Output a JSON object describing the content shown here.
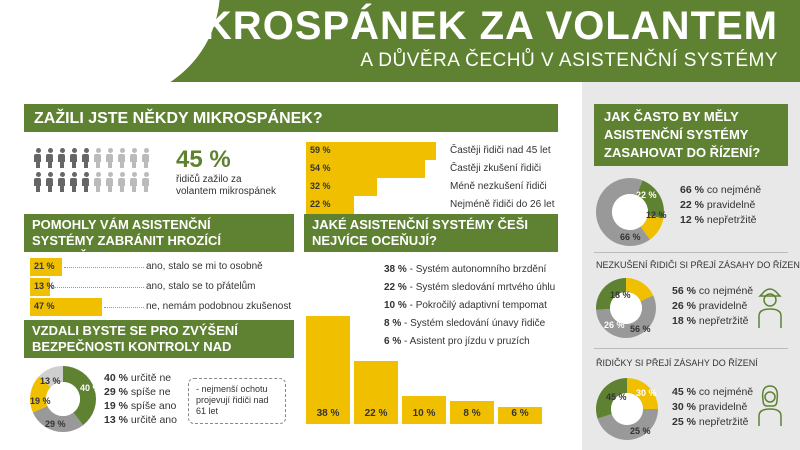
{
  "header": {
    "title": "MIKROSPÁNEK ZA VOLANTEM",
    "subtitle": "A DŮVĚRA ČECHŮ V ASISTENČNÍ SYSTÉMY"
  },
  "microsleep": {
    "title": "ZAŽILI JSTE NĚKDY MIKROSPÁNEK?",
    "big_value": "45 %",
    "big_caption_1": "řidičů zažilo za",
    "big_caption_2": "volantem mikrospánek",
    "people_total": 20,
    "people_highlighted": 9,
    "bars": [
      {
        "pct": "59 %",
        "value": 59,
        "label": "Častěji řidiči nad 45 let"
      },
      {
        "pct": "54 %",
        "value": 54,
        "label": "Častěji zkušení řidiči"
      },
      {
        "pct": "32 %",
        "value": 32,
        "label": "Méně nezkušení řidiči"
      },
      {
        "pct": "22 %",
        "value": 22,
        "label": "Nejméně řidiči do 26 let"
      }
    ]
  },
  "helped": {
    "title_1": "POMOHLY VÁM ASISTENČNÍ",
    "title_2": "SYSTÉMY ZABRÁNIT HROZÍCÍ NEHODĚ?",
    "bars": [
      {
        "pct": "21 %",
        "value": 21,
        "label": "ano, stalo se mi to osobně"
      },
      {
        "pct": "13 %",
        "value": 13,
        "label": "ano, stalo se to přátelům"
      },
      {
        "pct": "47 %",
        "value": 47,
        "label": "ne, nemám podobnou zkušenost"
      }
    ]
  },
  "valued": {
    "title_1": "JAKÉ ASISTENČNÍ SYSTÉMY ČEŠI",
    "title_2": "NEJVÍCE OCEŇUJÍ?",
    "items": [
      {
        "pct": "38 %",
        "value": 38,
        "label": "Systém autonomního brzdění"
      },
      {
        "pct": "22 %",
        "value": 22,
        "label": "Systém sledování mrtvého úhlu"
      },
      {
        "pct": "10 %",
        "value": 10,
        "label": "Pokročilý adaptivní tempomat"
      },
      {
        "pct": "8 %",
        "value": 8,
        "label": "Systém sledování únavy řidiče"
      },
      {
        "pct": "6 %",
        "value": 6,
        "label": "Asistent pro jízdu v pruzích"
      }
    ]
  },
  "control": {
    "title_1": "VZDALI BYSTE SE PRO ZVÝŠENÍ",
    "title_2": "BEZPEČNOSTI KONTROLY NAD VOZEM?",
    "slices": [
      {
        "pct": "40 %",
        "value": 40,
        "label": "určitě ne",
        "color": "#5f8232"
      },
      {
        "pct": "29 %",
        "value": 29,
        "label": "spíše ne",
        "color": "#999999"
      },
      {
        "pct": "19 %",
        "value": 19,
        "label": "spíše ano",
        "color": "#f0c000"
      },
      {
        "pct": "13 %",
        "value": 13,
        "label": "určitě ano",
        "color": "#cfcfcf"
      }
    ],
    "note_1": "- nejmenší ochotu",
    "note_2": "projevují řidiči nad",
    "note_3": "61 let"
  },
  "intervene": {
    "title_1": "JAK ČASTO BY MĚLY",
    "title_2": "ASISTENČNÍ SYSTÉMY",
    "title_3": "ZASAHOVAT DO ŘÍZENÍ?",
    "slices": [
      {
        "pct": "66 %",
        "value": 66,
        "label": "co nejméně",
        "color": "#999999"
      },
      {
        "pct": "22 %",
        "value": 22,
        "label": "pravidelně",
        "color": "#5f8232"
      },
      {
        "pct": "12 %",
        "value": 12,
        "label": "nepřetržitě",
        "color": "#f0c000"
      }
    ]
  },
  "novice": {
    "title": "NEZKUŠENÍ ŘIDIČI SI PŘEJÍ ZÁSAHY DO ŘÍZENÍ",
    "slices": [
      {
        "pct": "56 %",
        "value": 56,
        "label": "co nejméně",
        "color": "#999999"
      },
      {
        "pct": "26 %",
        "value": 26,
        "label": "pravidelně",
        "color": "#5f8232"
      },
      {
        "pct": "18 %",
        "value": 18,
        "label": "nepřetržitě",
        "color": "#f0c000"
      }
    ]
  },
  "women": {
    "title": "ŘIDIČKY SI PŘEJÍ ZÁSAHY DO ŘÍZENÍ",
    "slices": [
      {
        "pct": "45 %",
        "value": 45,
        "label": "co nejméně",
        "color": "#999999"
      },
      {
        "pct": "30 %",
        "value": 30,
        "label": "pravidelně",
        "color": "#5f8232"
      },
      {
        "pct": "25 %",
        "value": 25,
        "label": "nepřetržitě",
        "color": "#f0c000"
      }
    ]
  },
  "colors": {
    "green": "#5f8232",
    "yellow": "#f0c000",
    "gray": "#999999",
    "light_gray": "#e8e8e8"
  }
}
